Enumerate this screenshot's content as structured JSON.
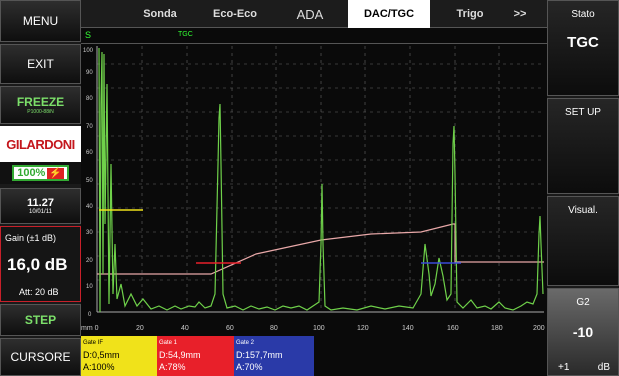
{
  "menu": {
    "menu": "MENU",
    "exit": "EXIT",
    "freeze": "FREEZE",
    "freeze_sub": "P1000-88iN",
    "logo": "GILARDONI",
    "battery": "100%",
    "time": "11.27",
    "date": "10/01/11",
    "gain_label": "Gain (±1 dB)",
    "gain_value": "16,0 dB",
    "att": "Att: 20 dB",
    "step": "STEP",
    "cursore": "CURSORE"
  },
  "tabs": {
    "sonda": "Sonda",
    "eco": "Eco-Eco",
    "ada": "ADA",
    "dac": "DAC/TGC",
    "trigo": "Trigo",
    "more": ">>"
  },
  "status_row": {
    "s": "S",
    "tgc": "TGC"
  },
  "right": {
    "stato": "Stato",
    "tgc": "TGC",
    "setup": "SET UP",
    "visual": "Visual.",
    "g2": "G2",
    "g2_value": "-10",
    "g2_step": "+1",
    "g2_unit": "dB"
  },
  "axes": {
    "y_ticks": [
      "100",
      "90",
      "80",
      "70",
      "60",
      "50",
      "40",
      "30",
      "20",
      "10",
      "0"
    ],
    "x_ticks": [
      "mm 0",
      "20",
      "40",
      "60",
      "80",
      "100",
      "120",
      "140",
      "160",
      "180",
      "200"
    ]
  },
  "gates": [
    {
      "name": "Gate IF",
      "d": "D:0,5mm",
      "a": "A:100%",
      "color": "#f0e21a"
    },
    {
      "name": "Gate 1",
      "d": "D:54,9mm",
      "a": "A:78%",
      "color": "#e8202a"
    },
    {
      "name": "Gate 2",
      "d": "D:157,7mm",
      "a": "A:70%",
      "color": "#2a3aa8"
    }
  ]
}
